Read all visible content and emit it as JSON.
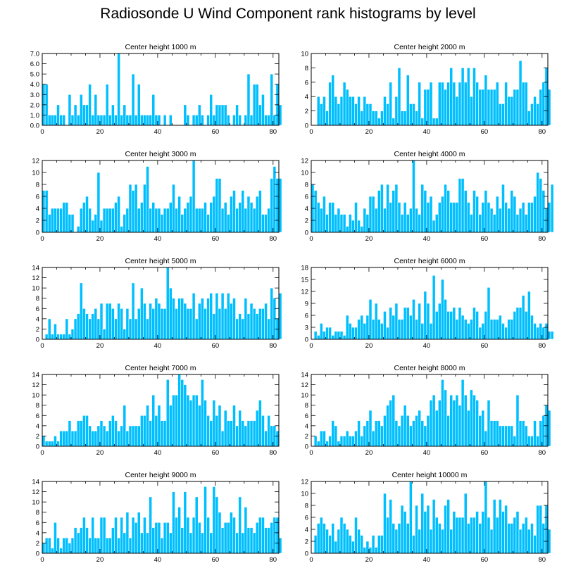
{
  "title": "Radiosonde U Wind Component rank histograms by level",
  "colors": {
    "bar": "#00BFFF",
    "bar_stroke": "#ffffff",
    "axis": "#000000"
  },
  "chart_data": [
    {
      "type": "bar",
      "title": "Center height 1000 m",
      "xlim": [
        0,
        82
      ],
      "ylim": [
        0,
        7
      ],
      "xticks": [
        0,
        20,
        40,
        60,
        80
      ],
      "yticks": [
        0,
        1,
        2,
        3,
        4,
        5,
        6,
        7
      ],
      "ytick_labels": [
        "0.0",
        "1.0",
        "2.0",
        "3.0",
        "4.0",
        "5.0",
        "6.0",
        "7.0"
      ],
      "values": [
        4,
        4,
        1,
        1,
        1,
        2,
        1,
        1,
        0,
        3,
        1,
        2,
        1,
        3,
        2,
        2,
        4,
        1,
        3,
        1,
        1,
        1,
        4,
        1,
        2,
        1,
        7,
        1,
        2,
        1,
        1,
        5,
        1,
        4,
        1,
        1,
        1,
        1,
        3,
        1,
        1,
        0,
        1,
        0,
        1,
        0,
        0,
        0,
        0,
        2,
        1,
        0,
        1,
        1,
        2,
        1,
        0,
        1,
        3,
        1,
        2,
        2,
        2,
        2,
        1,
        0,
        1,
        2,
        1,
        0,
        1,
        5,
        1,
        4,
        4,
        2,
        3,
        1,
        1,
        5,
        1,
        4,
        2
      ]
    },
    {
      "type": "bar",
      "title": "Center height 2000 m",
      "xlim": [
        0,
        82
      ],
      "ylim": [
        0,
        10
      ],
      "xticks": [
        0,
        20,
        40,
        60,
        80
      ],
      "yticks": [
        0,
        2,
        4,
        6,
        8,
        10
      ],
      "values": [
        0,
        0,
        4,
        3,
        4,
        2,
        6,
        7,
        4,
        3,
        4,
        6,
        5,
        4,
        4,
        3,
        4,
        2,
        4,
        3,
        3,
        2,
        2,
        1,
        2,
        4,
        3,
        6,
        1,
        4,
        8,
        2,
        2,
        7,
        3,
        3,
        2,
        6,
        1,
        5,
        5,
        6,
        1,
        1,
        6,
        6,
        5,
        6,
        8,
        6,
        4,
        6,
        8,
        6,
        8,
        4,
        8,
        6,
        5,
        5,
        7,
        5,
        5,
        5,
        6,
        3,
        3,
        6,
        4,
        4,
        5,
        5,
        9,
        6,
        6,
        2,
        3,
        4,
        3,
        5,
        6,
        8,
        5
      ]
    },
    {
      "type": "bar",
      "title": "Center height 3000 m",
      "xlim": [
        0,
        82
      ],
      "ylim": [
        0,
        12
      ],
      "xticks": [
        0,
        20,
        40,
        60,
        80
      ],
      "yticks": [
        0,
        2,
        4,
        6,
        8,
        10,
        12
      ],
      "values": [
        7,
        7,
        3,
        4,
        4,
        4,
        4,
        5,
        5,
        3,
        3,
        0,
        1,
        4,
        5,
        6,
        4,
        2,
        3,
        10,
        2,
        4,
        4,
        4,
        4,
        5,
        6,
        1,
        3,
        4,
        8,
        7,
        8,
        4,
        5,
        8,
        11,
        4,
        5,
        4,
        4,
        3,
        4,
        4,
        5,
        8,
        4,
        6,
        3,
        4,
        5,
        6,
        12,
        4,
        4,
        4,
        5,
        3,
        5,
        6,
        9,
        9,
        4,
        5,
        3,
        6,
        7,
        4,
        5,
        7,
        4,
        6,
        5,
        4,
        6,
        7,
        3,
        3,
        4,
        9,
        11,
        9,
        9
      ]
    },
    {
      "type": "bar",
      "title": "Center height 4000 m",
      "xlim": [
        0,
        82
      ],
      "ylim": [
        0,
        12
      ],
      "xticks": [
        0,
        20,
        40,
        60,
        80
      ],
      "yticks": [
        0,
        2,
        4,
        6,
        8,
        10,
        12
      ],
      "values": [
        8,
        7,
        5,
        4,
        6,
        3,
        5,
        5,
        3,
        4,
        3,
        3,
        1,
        3,
        2,
        5,
        2,
        1,
        4,
        3,
        6,
        6,
        4,
        7,
        8,
        4,
        8,
        5,
        7,
        8,
        5,
        3,
        5,
        3,
        4,
        12,
        4,
        3,
        8,
        7,
        5,
        6,
        2,
        3,
        5,
        6,
        8,
        7,
        5,
        5,
        5,
        9,
        9,
        7,
        5,
        3,
        7,
        6,
        3,
        5,
        7,
        5,
        4,
        3,
        6,
        4,
        8,
        5,
        4,
        7,
        6,
        3,
        4,
        5,
        3,
        5,
        5,
        6,
        10,
        9,
        7,
        4,
        5,
        8
      ]
    },
    {
      "type": "bar",
      "title": "Center height 5000 m",
      "xlim": [
        0,
        82
      ],
      "ylim": [
        0,
        14
      ],
      "xticks": [
        0,
        20,
        40,
        60,
        80
      ],
      "yticks": [
        0,
        2,
        4,
        6,
        8,
        10,
        12,
        14
      ],
      "values": [
        0,
        1,
        4,
        1,
        3,
        1,
        1,
        1,
        4,
        1,
        2,
        4,
        5,
        11,
        6,
        5,
        4,
        5,
        6,
        4,
        7,
        2,
        7,
        7,
        6,
        4,
        7,
        6,
        2,
        6,
        4,
        11,
        4,
        6,
        10,
        7,
        4,
        7,
        6,
        8,
        7,
        6,
        6,
        14,
        10,
        8,
        6,
        8,
        8,
        7,
        6,
        6,
        9,
        4,
        7,
        8,
        6,
        8,
        9,
        5,
        9,
        6,
        9,
        6,
        9,
        7,
        8,
        4,
        5,
        4,
        8,
        5,
        7,
        6,
        5,
        6,
        6,
        7,
        4,
        10,
        8,
        4,
        9
      ]
    },
    {
      "type": "bar",
      "title": "Center height 6000 m",
      "xlim": [
        0,
        82
      ],
      "ylim": [
        0,
        18
      ],
      "xticks": [
        0,
        20,
        40,
        60,
        80
      ],
      "yticks": [
        0,
        3,
        6,
        9,
        12,
        15,
        18
      ],
      "values": [
        0,
        2,
        1,
        4,
        2,
        3,
        3,
        1,
        2,
        2,
        2,
        1,
        6,
        4,
        3,
        3,
        5,
        6,
        4,
        6,
        10,
        5,
        9,
        5,
        4,
        7,
        3,
        8,
        6,
        9,
        5,
        5,
        8,
        8,
        6,
        10,
        5,
        9,
        4,
        12,
        9,
        4,
        16,
        7,
        9,
        15,
        10,
        7,
        7,
        8,
        5,
        8,
        6,
        5,
        4,
        5,
        8,
        7,
        3,
        4,
        7,
        13,
        5,
        5,
        5,
        6,
        4,
        3,
        5,
        5,
        7,
        8,
        8,
        11,
        7,
        12,
        6,
        4,
        3,
        4,
        3,
        4,
        2,
        2
      ]
    },
    {
      "type": "bar",
      "title": "Center height 7000 m",
      "xlim": [
        0,
        82
      ],
      "ylim": [
        0,
        14
      ],
      "xticks": [
        0,
        20,
        40,
        60,
        80
      ],
      "yticks": [
        0,
        2,
        4,
        6,
        8,
        10,
        12,
        14
      ],
      "values": [
        2,
        1,
        1,
        1,
        2,
        1,
        3,
        3,
        3,
        5,
        3,
        3,
        5,
        5,
        6,
        6,
        4,
        3,
        3,
        4,
        5,
        4,
        3,
        5,
        6,
        5,
        3,
        4,
        8,
        3,
        4,
        4,
        4,
        4,
        6,
        6,
        8,
        5,
        10,
        6,
        8,
        5,
        5,
        13,
        8,
        10,
        10,
        14,
        13,
        12,
        10,
        9,
        10,
        10,
        8,
        13,
        9,
        6,
        5,
        9,
        6,
        8,
        3,
        7,
        5,
        5,
        8,
        4,
        7,
        5,
        4,
        5,
        5,
        5,
        7,
        9,
        6,
        3,
        6,
        4,
        4,
        3
      ]
    },
    {
      "type": "bar",
      "title": "Center height 8000 m",
      "xlim": [
        0,
        82
      ],
      "ylim": [
        0,
        14
      ],
      "xticks": [
        0,
        20,
        40,
        60,
        80
      ],
      "yticks": [
        0,
        2,
        4,
        6,
        8,
        10,
        12,
        14
      ],
      "values": [
        0,
        2,
        1,
        3,
        3,
        1,
        2,
        5,
        4,
        1,
        2,
        2,
        3,
        2,
        2,
        3,
        5,
        2,
        4,
        5,
        7,
        3,
        5,
        5,
        4,
        6,
        8,
        9,
        10,
        5,
        4,
        6,
        8,
        6,
        4,
        5,
        6,
        7,
        5,
        4,
        6,
        9,
        10,
        7,
        9,
        13,
        11,
        6,
        10,
        9,
        10,
        8,
        13,
        10,
        7,
        11,
        10,
        9,
        6,
        7,
        3,
        9,
        5,
        5,
        5,
        4,
        4,
        4,
        4,
        4,
        2,
        10,
        5,
        5,
        4,
        2,
        2,
        5,
        2,
        5,
        6,
        8,
        7
      ]
    },
    {
      "type": "bar",
      "title": "Center height 9000 m",
      "xlim": [
        0,
        82
      ],
      "ylim": [
        0,
        14
      ],
      "xticks": [
        0,
        20,
        40,
        60,
        80
      ],
      "yticks": [
        0,
        2,
        4,
        6,
        8,
        10,
        12,
        14
      ],
      "values": [
        2,
        3,
        3,
        1,
        6,
        3,
        1,
        3,
        3,
        2,
        3,
        5,
        4,
        5,
        7,
        5,
        3,
        7,
        3,
        3,
        7,
        7,
        3,
        3,
        5,
        7,
        3,
        7,
        4,
        8,
        3,
        7,
        6,
        8,
        4,
        7,
        4,
        11,
        5,
        6,
        6,
        3,
        6,
        6,
        4,
        12,
        7,
        9,
        5,
        12,
        7,
        4,
        7,
        11,
        6,
        4,
        13,
        7,
        4,
        13,
        11,
        8,
        5,
        6,
        6,
        8,
        7,
        4,
        11,
        4,
        9,
        5,
        5,
        4,
        6,
        7,
        7,
        5,
        5,
        6,
        7,
        7,
        3
      ]
    },
    {
      "type": "bar",
      "title": "Center height 10000 m",
      "xlim": [
        0,
        82
      ],
      "ylim": [
        0,
        12
      ],
      "xticks": [
        0,
        20,
        40,
        60,
        80
      ],
      "yticks": [
        0,
        2,
        4,
        6,
        8,
        10,
        12
      ],
      "values": [
        0,
        3,
        5,
        6,
        5,
        4,
        3,
        5,
        2,
        4,
        6,
        5,
        4,
        3,
        2,
        6,
        4,
        3,
        1,
        2,
        1,
        3,
        1,
        3,
        3,
        10,
        6,
        9,
        5,
        4,
        5,
        8,
        7,
        5,
        12,
        3,
        8,
        4,
        10,
        7,
        8,
        4,
        9,
        6,
        5,
        4,
        8,
        9,
        4,
        7,
        6,
        6,
        6,
        10,
        5,
        6,
        6,
        7,
        5,
        7,
        12,
        6,
        4,
        9,
        6,
        9,
        7,
        8,
        5,
        5,
        6,
        7,
        4,
        5,
        6,
        4,
        5,
        3,
        8,
        8,
        5,
        8,
        4
      ]
    }
  ]
}
